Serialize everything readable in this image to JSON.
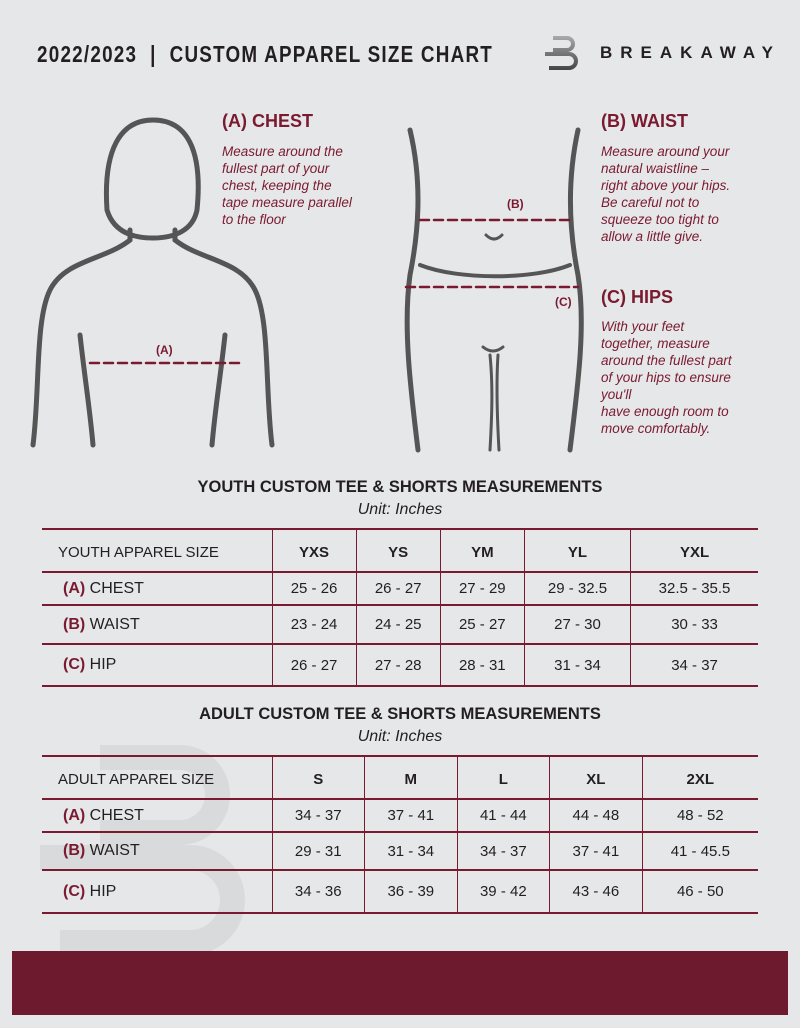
{
  "header": {
    "title": "2022/2023  |  CUSTOM APPAREL SIZE CHART",
    "brand": "BREAKAWAY"
  },
  "colors": {
    "accent": "#7a1a30",
    "background": "#e6e7e9",
    "footer": "#6e1a2e"
  },
  "guide": {
    "chest": {
      "title": "(A) CHEST",
      "marker": "(A)",
      "lines": [
        "Measure around the",
        "fullest part of your",
        "chest, keeping the",
        "tape measure parallel",
        "to the floor"
      ]
    },
    "waist": {
      "title": "(B) WAIST",
      "marker": "(B)",
      "lines": [
        "Measure around your",
        "natural waistline –",
        "right above your hips.",
        "Be careful not to",
        "squeeze too tight to",
        "allow a little give."
      ]
    },
    "hips": {
      "title": "(C) HIPS",
      "marker": "(C)",
      "lines": [
        "With your feet",
        "together, measure",
        "around the fullest part",
        "of your hips to ensure",
        "you'll",
        "have enough room to",
        "move comfortably."
      ]
    }
  },
  "youth": {
    "title": "YOUTH CUSTOM TEE & SHORTS MEASUREMENTS",
    "unit": "Unit: Inches",
    "header": [
      "YOUTH APPAREL SIZE",
      "YXS",
      "YS",
      "YM",
      "YL",
      "YXL"
    ],
    "rows": [
      {
        "letter": "(A)",
        "label": "CHEST",
        "values": [
          "25 - 26",
          "26 - 27",
          "27 - 29",
          "29 - 32.5",
          "32.5 - 35.5"
        ]
      },
      {
        "letter": "(B)",
        "label": "WAIST",
        "values": [
          "23 - 24",
          "24 - 25",
          "25 - 27",
          "27 - 30",
          "30 - 33"
        ]
      },
      {
        "letter": "(C)",
        "label": "HIP",
        "values": [
          "26 - 27",
          "27 - 28",
          "28 - 31",
          "31 - 34",
          "34 - 37"
        ]
      }
    ]
  },
  "adult": {
    "title": "ADULT CUSTOM TEE & SHORTS MEASUREMENTS",
    "unit": "Unit: Inches",
    "header": [
      "ADULT APPAREL SIZE",
      "S",
      "M",
      "L",
      "XL",
      "2XL"
    ],
    "rows": [
      {
        "letter": "(A)",
        "label": "CHEST",
        "values": [
          "34 - 37",
          "37 - 41",
          "41 - 44",
          "44 - 48",
          "48 - 52"
        ]
      },
      {
        "letter": "(B)",
        "label": "WAIST",
        "values": [
          "29 - 31",
          "31 - 34",
          "34 - 37",
          "37 - 41",
          "41 - 45.5"
        ]
      },
      {
        "letter": "(C)",
        "label": "HIP",
        "values": [
          "34 - 36",
          "36 - 39",
          "39 - 42",
          "43 - 46",
          "46 - 50"
        ]
      }
    ]
  }
}
